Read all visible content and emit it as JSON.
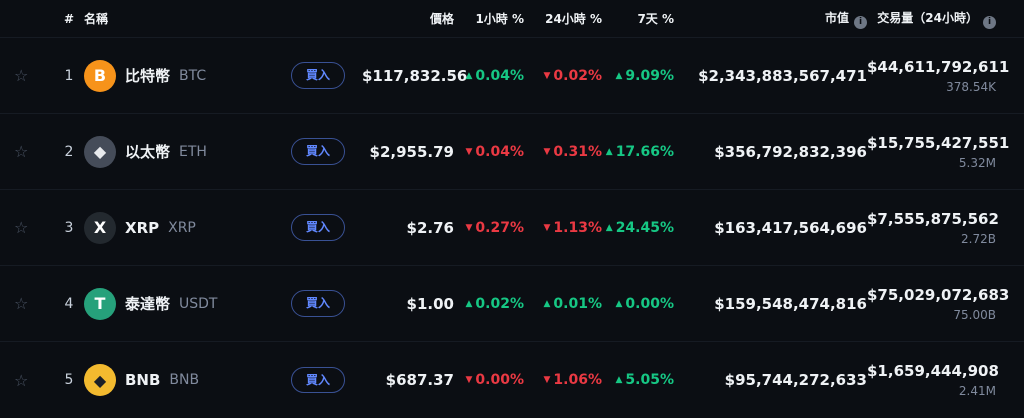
{
  "theme": {
    "up": "#16c784",
    "down": "#ea3943",
    "accent": "#6188ff",
    "bg": "#0b0e13"
  },
  "table": {
    "headers": {
      "rank": "#",
      "name": "名稱",
      "price": "價格",
      "h1": "1小時 %",
      "h24": "24小時 %",
      "d7": "7天 %",
      "market_cap": "市值",
      "volume": "交易量（24小時）"
    },
    "buy_label": "買入",
    "rows": [
      {
        "rank": "1",
        "name": "比特幣",
        "symbol": "BTC",
        "icon": {
          "name": "btc-icon",
          "glyph": "B",
          "bg": "#f7931a",
          "fg": "#ffffff"
        },
        "price": "$117,832.56",
        "h1": {
          "dir": "up",
          "value": "0.04%"
        },
        "h24": {
          "dir": "down",
          "value": "0.02%"
        },
        "d7": {
          "dir": "up",
          "value": "9.09%"
        },
        "market_cap": "$2,343,883,567,471",
        "volume": "$44,611,792,611",
        "volume_sub": "378.54K"
      },
      {
        "rank": "2",
        "name": "以太幣",
        "symbol": "ETH",
        "icon": {
          "name": "eth-icon",
          "glyph": "◆",
          "bg": "#454c59",
          "fg": "#e8eaed"
        },
        "price": "$2,955.79",
        "h1": {
          "dir": "down",
          "value": "0.04%"
        },
        "h24": {
          "dir": "down",
          "value": "0.31%"
        },
        "d7": {
          "dir": "up",
          "value": "17.66%"
        },
        "market_cap": "$356,792,832,396",
        "volume": "$15,755,427,551",
        "volume_sub": "5.32M"
      },
      {
        "rank": "3",
        "name": "XRP",
        "symbol": "XRP",
        "icon": {
          "name": "xrp-icon",
          "glyph": "X",
          "bg": "#23292f",
          "fg": "#ffffff"
        },
        "price": "$2.76",
        "h1": {
          "dir": "down",
          "value": "0.27%"
        },
        "h24": {
          "dir": "down",
          "value": "1.13%"
        },
        "d7": {
          "dir": "up",
          "value": "24.45%"
        },
        "market_cap": "$163,417,564,696",
        "volume": "$7,555,875,562",
        "volume_sub": "2.72B"
      },
      {
        "rank": "4",
        "name": "泰達幣",
        "symbol": "USDT",
        "icon": {
          "name": "usdt-icon",
          "glyph": "T",
          "bg": "#26a17b",
          "fg": "#ffffff"
        },
        "price": "$1.00",
        "h1": {
          "dir": "up",
          "value": "0.02%"
        },
        "h24": {
          "dir": "up",
          "value": "0.01%"
        },
        "d7": {
          "dir": "up",
          "value": "0.00%"
        },
        "market_cap": "$159,548,474,816",
        "volume": "$75,029,072,683",
        "volume_sub": "75.00B"
      },
      {
        "rank": "5",
        "name": "BNB",
        "symbol": "BNB",
        "icon": {
          "name": "bnb-icon",
          "glyph": "◆",
          "bg": "#f3ba2f",
          "fg": "#1b1f27"
        },
        "price": "$687.37",
        "h1": {
          "dir": "down",
          "value": "0.00%"
        },
        "h24": {
          "dir": "down",
          "value": "1.06%"
        },
        "d7": {
          "dir": "up",
          "value": "5.05%"
        },
        "market_cap": "$95,744,272,633",
        "volume": "$1,659,444,908",
        "volume_sub": "2.41M"
      }
    ]
  }
}
